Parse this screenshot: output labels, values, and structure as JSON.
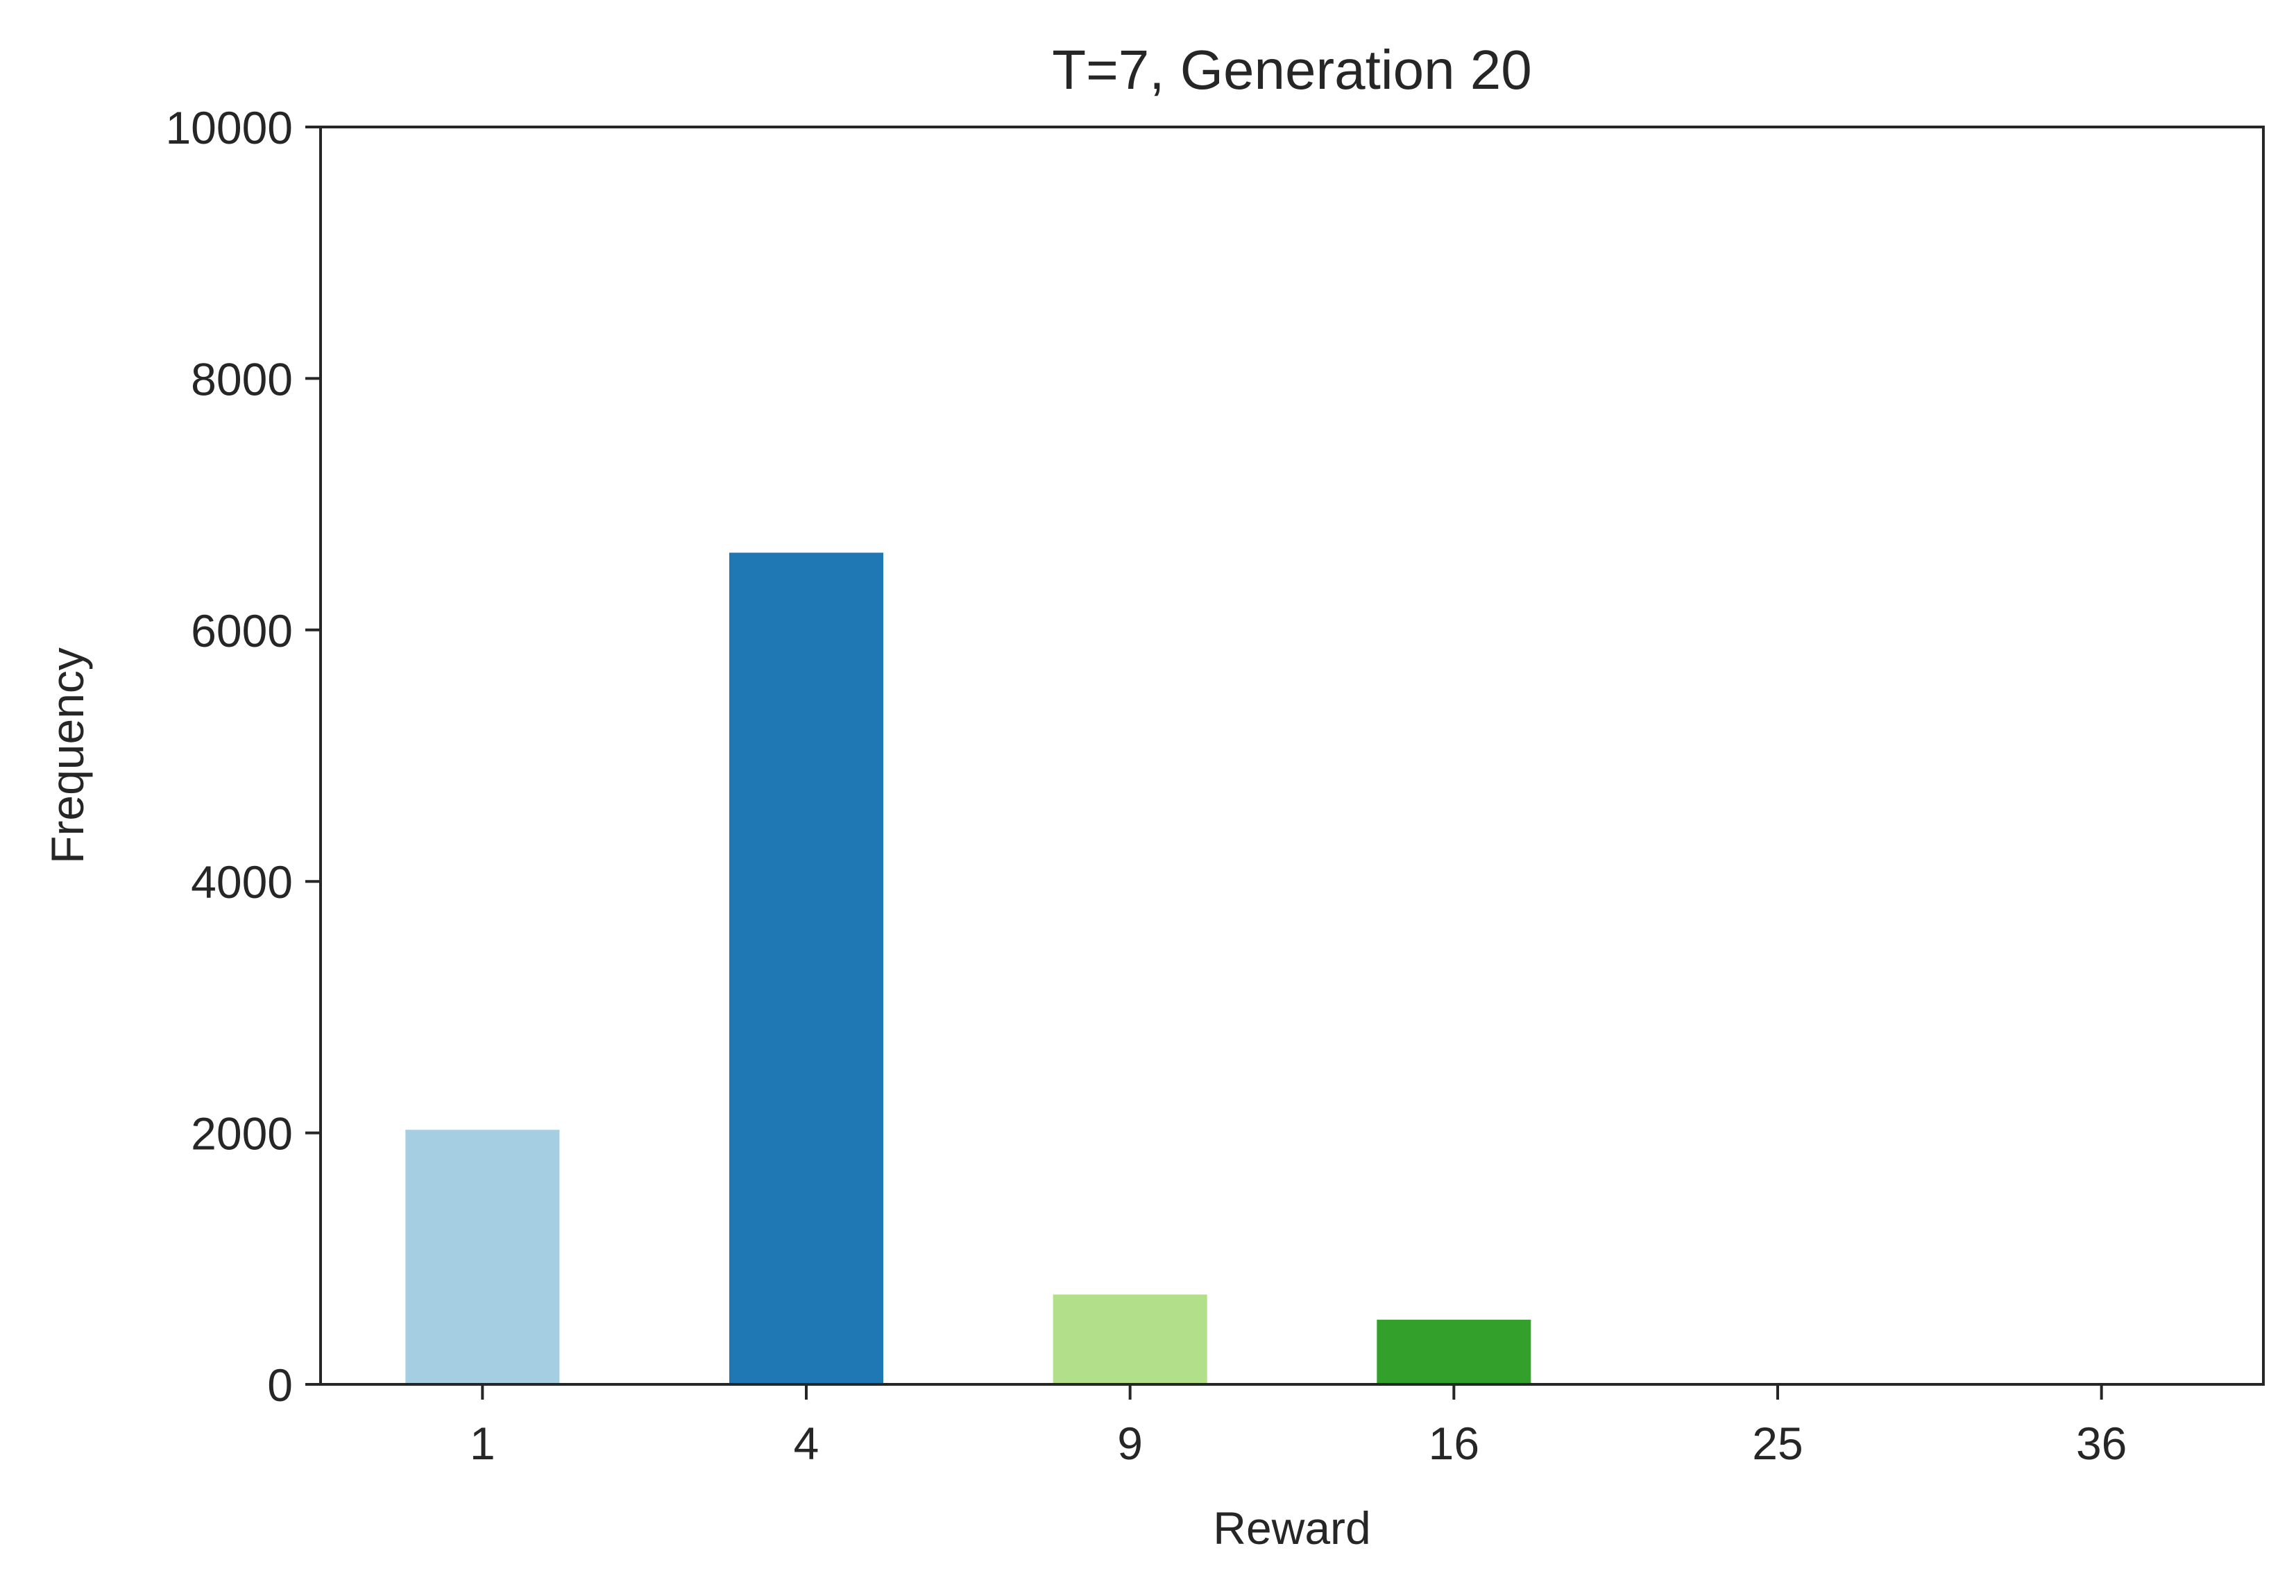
{
  "chart_data": {
    "type": "bar",
    "title": "T=7, Generation 20",
    "xlabel": "Reward",
    "ylabel": "Frequency",
    "categories": [
      "1",
      "4",
      "9",
      "16",
      "25",
      "36"
    ],
    "values": [
      2030,
      6620,
      720,
      520,
      0,
      0
    ],
    "colors": [
      "#a6cee3",
      "#1f78b4",
      "#b2df8a",
      "#33a02c",
      "#fb9a99",
      "#e31a1c"
    ],
    "ylim": [
      0,
      10000
    ],
    "yticks": [
      "0",
      "2000",
      "4000",
      "6000",
      "8000",
      "10000"
    ],
    "ytick_values": [
      0,
      2000,
      4000,
      6000,
      8000,
      10000
    ],
    "grid": false,
    "legend": "none"
  }
}
